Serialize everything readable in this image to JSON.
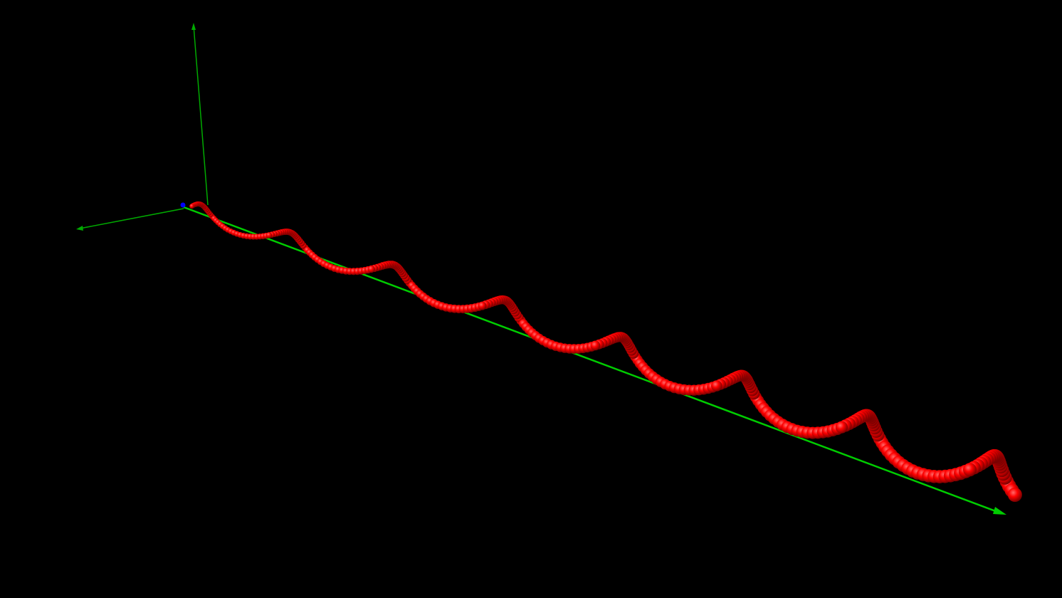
{
  "scene": {
    "background_color": "#000000",
    "axes": {
      "color_main": "#00cc00",
      "color_secondary": "#00aa00",
      "items": [
        {
          "name": "x-axis"
        },
        {
          "name": "y-axis"
        },
        {
          "name": "z-axis"
        }
      ]
    },
    "helix": {
      "sphere_color": "#ff0000",
      "sphere_highlight": "#ff6a6a",
      "sphere_shadow": "#7a0000",
      "start_marker_color": "#0000ff",
      "turns": 7.5,
      "sphere_count": 300
    }
  }
}
